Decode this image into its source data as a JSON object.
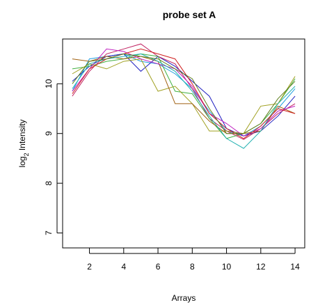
{
  "chart_data": {
    "type": "line",
    "title": "probe set  A",
    "xlabel": "Arrays",
    "ylabel_main": "log",
    "ylabel_sub": "2",
    "ylabel_rest": " Intensity",
    "xlim": [
      1,
      14
    ],
    "ylim": [
      6.7,
      10.9
    ],
    "x_ticks": [
      2,
      4,
      6,
      8,
      10,
      12,
      14
    ],
    "y_ticks": [
      7,
      8,
      9,
      10
    ],
    "x": [
      1,
      2,
      3,
      4,
      5,
      6,
      7,
      8,
      9,
      10,
      11,
      12,
      13,
      14
    ],
    "series": [
      {
        "color": "#1f9fe0",
        "values": [
          9.85,
          10.5,
          10.55,
          10.6,
          10.45,
          10.4,
          10.2,
          9.9,
          9.45,
          9.05,
          8.95,
          9.15,
          9.5,
          9.9
        ]
      },
      {
        "color": "#2020c0",
        "values": [
          10.05,
          10.35,
          10.55,
          10.6,
          10.25,
          10.55,
          10.35,
          10.05,
          9.75,
          9.1,
          8.95,
          9.05,
          9.35,
          9.75
        ]
      },
      {
        "color": "#c02060",
        "values": [
          9.75,
          10.25,
          10.6,
          10.7,
          10.8,
          10.55,
          10.4,
          9.9,
          9.3,
          9.05,
          8.88,
          9.1,
          9.4,
          9.6
        ]
      },
      {
        "color": "#40b040",
        "values": [
          10.3,
          10.35,
          10.45,
          10.5,
          10.6,
          10.55,
          9.85,
          9.8,
          9.3,
          8.9,
          9.0,
          9.2,
          9.6,
          10.1
        ]
      },
      {
        "color": "#a0a020",
        "values": [
          10.2,
          10.4,
          10.3,
          10.45,
          10.5,
          9.85,
          9.95,
          9.6,
          9.05,
          9.05,
          9.0,
          9.55,
          9.6,
          10.15
        ]
      },
      {
        "color": "#a06010",
        "values": [
          10.5,
          10.45,
          10.55,
          10.5,
          10.55,
          10.45,
          9.6,
          9.6,
          9.25,
          9.0,
          9.0,
          9.05,
          9.55,
          9.4
        ]
      },
      {
        "color": "#c020c0",
        "values": [
          9.85,
          10.3,
          10.7,
          10.65,
          10.5,
          10.4,
          10.3,
          9.95,
          9.4,
          9.2,
          8.95,
          9.1,
          9.45,
          9.55
        ]
      },
      {
        "color": "#20b0b0",
        "values": [
          9.9,
          10.4,
          10.5,
          10.55,
          10.6,
          10.45,
          10.25,
          9.85,
          9.35,
          8.9,
          8.7,
          9.05,
          9.6,
          9.95
        ]
      },
      {
        "color": "#d02020",
        "values": [
          9.8,
          10.3,
          10.5,
          10.6,
          10.7,
          10.6,
          10.5,
          10.0,
          9.4,
          9.1,
          8.9,
          9.15,
          9.5,
          9.4
        ]
      },
      {
        "color": "#608020",
        "values": [
          10.0,
          10.45,
          10.5,
          10.6,
          10.55,
          10.5,
          10.3,
          10.1,
          9.5,
          9.0,
          9.0,
          9.2,
          9.7,
          10.05
        ]
      }
    ]
  }
}
